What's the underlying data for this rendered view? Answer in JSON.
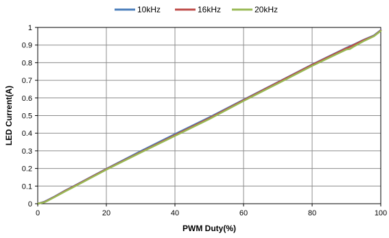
{
  "chart_data": {
    "type": "line",
    "title": "",
    "xlabel": "PWM Duty(%)",
    "ylabel": "LED Current(A)",
    "xlim": [
      0,
      100
    ],
    "ylim": [
      0,
      1
    ],
    "xticks": [
      0,
      20,
      40,
      60,
      80,
      100
    ],
    "yticks": [
      0,
      0.1,
      0.2,
      0.3,
      0.4,
      0.5,
      0.6,
      0.7,
      0.8,
      0.9,
      1
    ],
    "ytick_labels": [
      "0",
      "0.1",
      "0.2",
      "0.3",
      "0.4",
      "0.5",
      "0.6",
      "0.7",
      "0.8",
      "0.9",
      "1"
    ],
    "grid": true,
    "legend_position": "top",
    "series": [
      {
        "name": "10kHz",
        "color": "#4a7ebb",
        "x": [
          0,
          2,
          3,
          5,
          8,
          10,
          20,
          30,
          40,
          50,
          60,
          70,
          80,
          90,
          92,
          95,
          98,
          100
        ],
        "y": [
          0,
          0.012,
          0.022,
          0.042,
          0.075,
          0.095,
          0.198,
          0.298,
          0.395,
          0.49,
          0.59,
          0.69,
          0.79,
          0.885,
          0.902,
          0.93,
          0.955,
          0.985
        ]
      },
      {
        "name": "16kHz",
        "color": "#be4b48",
        "x": [
          0,
          2,
          3,
          5,
          8,
          10,
          20,
          30,
          40,
          50,
          60,
          70,
          80,
          90,
          91,
          95,
          98,
          100
        ],
        "y": [
          0,
          0.01,
          0.02,
          0.04,
          0.073,
          0.093,
          0.196,
          0.293,
          0.389,
          0.485,
          0.587,
          0.688,
          0.788,
          0.882,
          0.89,
          0.928,
          0.952,
          0.983
        ]
      },
      {
        "name": "20kHz",
        "color": "#98b954",
        "x": [
          0,
          2,
          3,
          5,
          8,
          10,
          20,
          30,
          40,
          50,
          60,
          70,
          80,
          90,
          91,
          92,
          95,
          98,
          100
        ],
        "y": [
          0,
          0.008,
          0.018,
          0.038,
          0.07,
          0.09,
          0.193,
          0.29,
          0.385,
          0.48,
          0.583,
          0.682,
          0.782,
          0.875,
          0.878,
          0.89,
          0.922,
          0.95,
          0.98
        ]
      }
    ]
  }
}
